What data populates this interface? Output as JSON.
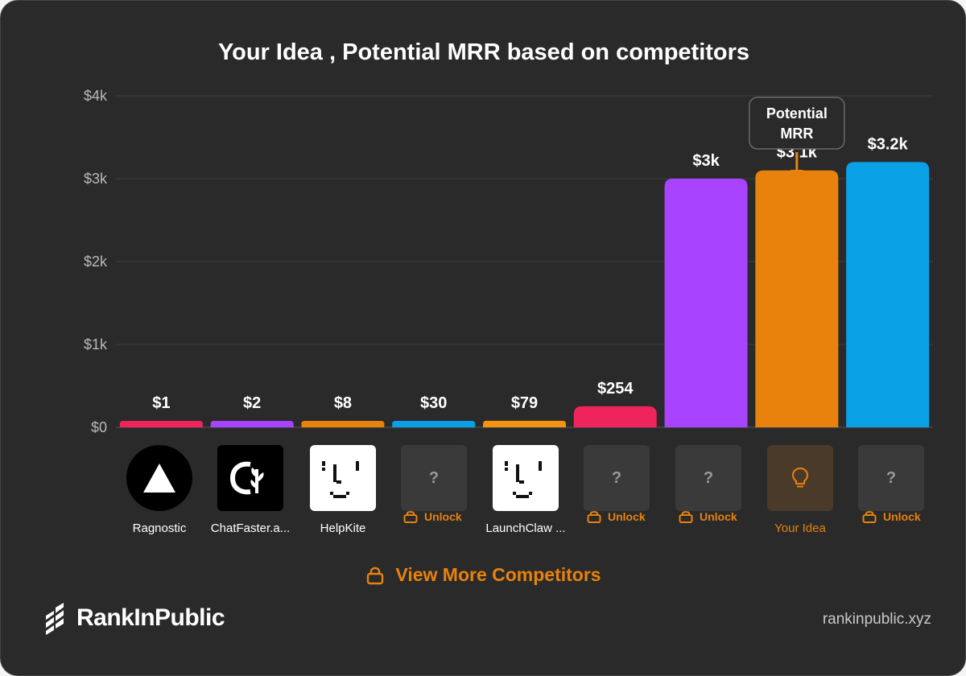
{
  "chart_data": {
    "type": "bar",
    "title": "Your Idea , Potential MRR based on competitors",
    "categories": [
      "Ragnostic",
      "ChatFaster.a...",
      "HelpKite",
      "?",
      "LaunchClaw ...",
      "?",
      "?",
      "Your Idea",
      "?"
    ],
    "values": [
      1,
      2,
      8,
      30,
      79,
      254,
      3000,
      3100,
      3200
    ],
    "value_labels": [
      "$1",
      "$2",
      "$8",
      "$30",
      "$79",
      "$254",
      "$3k",
      "$3.1k",
      "$3.2k"
    ],
    "colors": [
      "#f0245c",
      "#a843ff",
      "#e8820c",
      "#0aa0e6",
      "#f3930f",
      "#f0245c",
      "#a843ff",
      "#e8820c",
      "#0aa0e6"
    ],
    "yticks": [
      "$0",
      "$1k",
      "$2k",
      "$3k",
      "$4k"
    ],
    "ylim": [
      0,
      4000
    ],
    "grid": true,
    "annotation": {
      "text_line1": "Potential",
      "text_line2": "MRR",
      "target": "Your Idea"
    }
  },
  "items": [
    {
      "name": "Ragnostic",
      "icon": "triangle-logo-icon"
    },
    {
      "name": "ChatFaster.a...",
      "icon": "chatfaster-logo-icon"
    },
    {
      "name": "HelpKite",
      "icon": "pixel-face-icon"
    },
    {
      "name": "",
      "icon": "question-icon",
      "unlock": "Unlock"
    },
    {
      "name": "LaunchClaw ...",
      "icon": "pixel-face-icon"
    },
    {
      "name": "",
      "icon": "question-icon",
      "unlock": "Unlock"
    },
    {
      "name": "",
      "icon": "question-icon",
      "unlock": "Unlock"
    },
    {
      "name": "Your Idea",
      "icon": "lightbulb-icon"
    },
    {
      "name": "",
      "icon": "question-icon",
      "unlock": "Unlock"
    }
  ],
  "question_mark": "?",
  "view_more_label": "View More Competitors",
  "brand": "RankInPublic",
  "site": "rankinpublic.xyz",
  "colors": {
    "accent": "#e8820c",
    "background": "#2a2a2a"
  }
}
